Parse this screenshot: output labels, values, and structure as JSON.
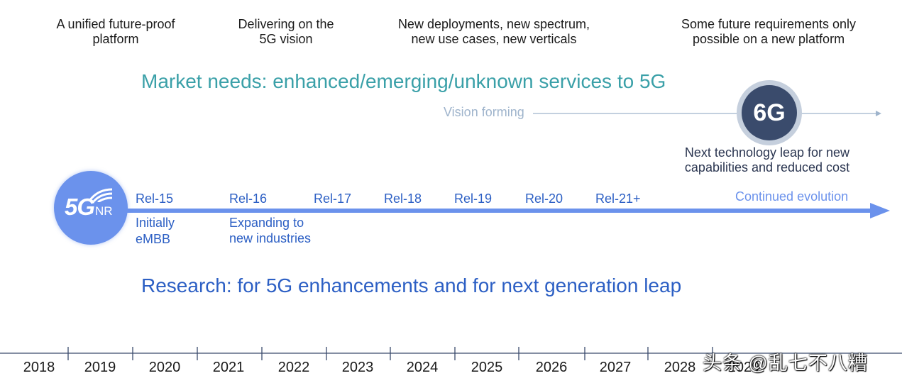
{
  "top_columns": [
    {
      "lines": [
        "A unified future-proof",
        "platform"
      ]
    },
    {
      "lines": [
        "Delivering on the",
        "5G vision"
      ]
    },
    {
      "lines": [
        "New deployments, new spectrum,",
        "new use cases, new verticals"
      ]
    },
    {
      "lines": [
        "Some future requirements only",
        "possible on a new platform"
      ]
    }
  ],
  "market_needs": "Market needs: enhanced/emerging/unknown services to 5G",
  "vision_forming": "Vision forming",
  "sixg": {
    "label": "6G",
    "description": [
      "Next technology leap for new",
      "capabilities and reduced cost"
    ]
  },
  "fiveg_logo": {
    "main": "5G",
    "suffix": "NR"
  },
  "releases": [
    "Rel-15",
    "Rel-16",
    "Rel-17",
    "Rel-18",
    "Rel-19",
    "Rel-20",
    "Rel-21+"
  ],
  "release_notes": [
    [
      "Initially",
      "eMBB"
    ],
    [
      "Expanding to",
      "new industries"
    ]
  ],
  "continued_evolution": "Continued evolution",
  "research": "Research: for 5G enhancements and for next generation leap",
  "years": [
    "2018",
    "2019",
    "2020",
    "2021",
    "2022",
    "2023",
    "2024",
    "2025",
    "2026",
    "2027",
    "2028",
    "2029"
  ],
  "watermark": "头条 @乱七不八糟",
  "colors": {
    "teal": "#3aa0a8",
    "blue": "#2c5fc4",
    "light_blue": "#6b92ec",
    "six_g_dark": "#3a4b6c",
    "vision_gray": "#9fb4cc"
  }
}
